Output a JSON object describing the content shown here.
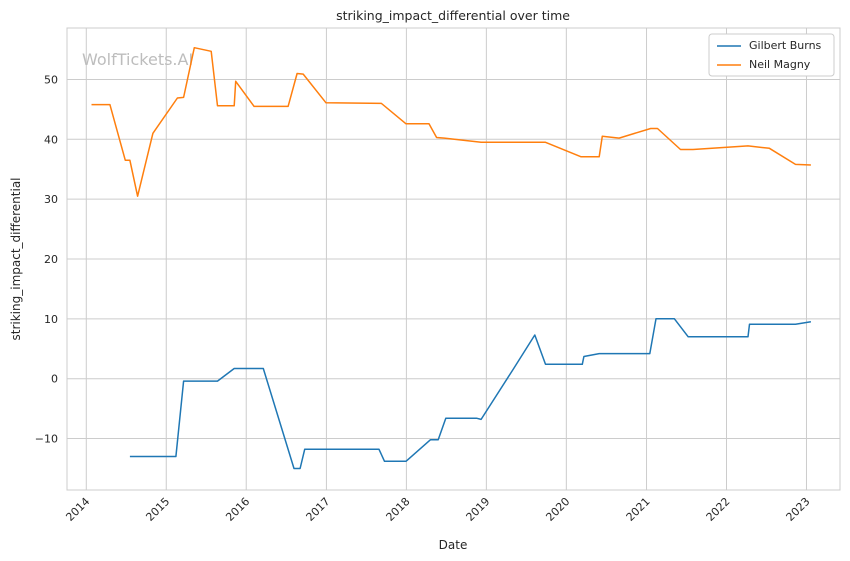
{
  "chart_data": {
    "type": "line",
    "title": "striking_impact_differential over time",
    "xlabel": "Date",
    "ylabel": "striking_impact_differential",
    "xlim": [
      "2013-10-05",
      "2023-06-03"
    ],
    "ylim": [
      -18.6,
      58.6
    ],
    "x_ticks": [
      "2014-01-01",
      "2015-01-01",
      "2016-01-01",
      "2017-01-01",
      "2018-01-01",
      "2019-01-01",
      "2020-01-01",
      "2021-01-01",
      "2022-01-01",
      "2023-01-01"
    ],
    "x_tick_labels": [
      "2014",
      "2015",
      "2016",
      "2017",
      "2018",
      "2019",
      "2020",
      "2021",
      "2022",
      "2023"
    ],
    "y_ticks": [
      -10,
      0,
      10,
      20,
      30,
      40,
      50
    ],
    "y_tick_labels": [
      "−10",
      "0",
      "10",
      "20",
      "30",
      "40",
      "50"
    ],
    "grid": true,
    "legend_position": "top-right",
    "watermark": "WolfTickets.AI",
    "series": [
      {
        "name": "Gilbert Burns",
        "color": "#1f77b4",
        "points": [
          [
            "2014-07-19",
            -13.0
          ],
          [
            "2014-11-08",
            -13.0
          ],
          [
            "2015-02-14",
            -13.0
          ],
          [
            "2015-03-21",
            -0.4
          ],
          [
            "2015-08-23",
            -0.4
          ],
          [
            "2015-11-07",
            1.7
          ],
          [
            "2016-03-19",
            1.7
          ],
          [
            "2016-08-06",
            -15.0
          ],
          [
            "2016-09-03",
            -15.0
          ],
          [
            "2016-09-24",
            -11.8
          ],
          [
            "2017-08-29",
            -11.8
          ],
          [
            "2017-09-23",
            -13.8
          ],
          [
            "2017-12-30",
            -13.8
          ],
          [
            "2018-04-21",
            -10.2
          ],
          [
            "2018-05-26",
            -10.2
          ],
          [
            "2018-06-30",
            -6.6
          ],
          [
            "2018-11-17",
            -6.6
          ],
          [
            "2018-12-08",
            -6.8
          ],
          [
            "2019-05-04",
            1.6
          ],
          [
            "2019-08-10",
            7.3
          ],
          [
            "2019-09-28",
            2.4
          ],
          [
            "2020-03-14",
            2.4
          ],
          [
            "2020-03-21",
            3.7
          ],
          [
            "2020-05-30",
            4.2
          ],
          [
            "2021-01-16",
            4.2
          ],
          [
            "2021-02-13",
            10.0
          ],
          [
            "2021-05-08",
            10.0
          ],
          [
            "2021-07-10",
            7.0
          ],
          [
            "2022-04-09",
            7.0
          ],
          [
            "2022-04-16",
            9.1
          ],
          [
            "2022-11-12",
            9.1
          ],
          [
            "2023-01-21",
            9.5
          ]
        ]
      },
      {
        "name": "Neil Magny",
        "color": "#ff7f0e",
        "points": [
          [
            "2014-01-25",
            45.8
          ],
          [
            "2014-04-19",
            45.8
          ],
          [
            "2014-06-28",
            36.5
          ],
          [
            "2014-07-19",
            36.5
          ],
          [
            "2014-08-23",
            30.5
          ],
          [
            "2014-11-01",
            41.0
          ],
          [
            "2015-02-21",
            46.9
          ],
          [
            "2015-03-21",
            47.0
          ],
          [
            "2015-05-09",
            55.3
          ],
          [
            "2015-07-25",
            54.7
          ],
          [
            "2015-08-23",
            45.6
          ],
          [
            "2015-11-07",
            45.6
          ],
          [
            "2015-11-14",
            49.7
          ],
          [
            "2016-02-06",
            45.5
          ],
          [
            "2016-07-10",
            45.5
          ],
          [
            "2016-08-20",
            51.0
          ],
          [
            "2016-09-17",
            50.9
          ],
          [
            "2016-12-30",
            46.1
          ],
          [
            "2017-09-09",
            46.0
          ],
          [
            "2017-12-30",
            42.6
          ],
          [
            "2018-04-14",
            42.6
          ],
          [
            "2018-05-19",
            40.3
          ],
          [
            "2018-06-23",
            40.2
          ],
          [
            "2018-12-08",
            39.5
          ],
          [
            "2019-09-28",
            39.5
          ],
          [
            "2020-03-07",
            37.1
          ],
          [
            "2020-05-30",
            37.1
          ],
          [
            "2020-06-13",
            40.5
          ],
          [
            "2020-08-29",
            40.2
          ],
          [
            "2021-01-20",
            41.8
          ],
          [
            "2021-02-20",
            41.8
          ],
          [
            "2021-06-05",
            38.3
          ],
          [
            "2021-08-01",
            38.3
          ],
          [
            "2022-04-09",
            38.9
          ],
          [
            "2022-07-16",
            38.5
          ],
          [
            "2022-11-12",
            35.8
          ],
          [
            "2023-01-21",
            35.7
          ]
        ]
      }
    ]
  }
}
